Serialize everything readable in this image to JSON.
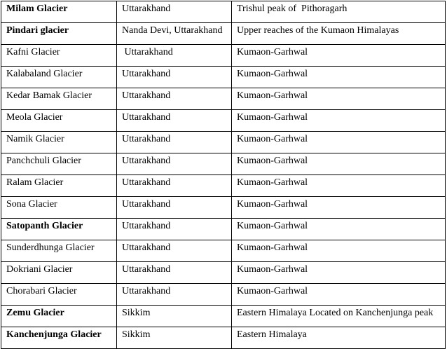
{
  "table": {
    "rows": [
      {
        "cells": [
          "Milam Glacier",
          "Uttarakhand",
          "Trishul peak of  Pithoragarh"
        ],
        "bold": true
      },
      {
        "cells": [
          "Pindari glacier",
          "Nanda Devi, Uttarakhand",
          "Upper reaches of the Kumaon Himalayas"
        ],
        "bold": true
      },
      {
        "cells": [
          "Kafni Glacier",
          " Uttarakhand",
          "Kumaon-Garhwal"
        ],
        "bold": false
      },
      {
        "cells": [
          "Kalabaland Glacier",
          "Uttarakhand",
          "Kumaon-Garhwal"
        ],
        "bold": false
      },
      {
        "cells": [
          "Kedar Bamak Glacier",
          "Uttarakhand",
          "Kumaon-Garhwal"
        ],
        "bold": false
      },
      {
        "cells": [
          "Meola Glacier",
          "Uttarakhand",
          "Kumaon-Garhwal"
        ],
        "bold": false
      },
      {
        "cells": [
          "Namik Glacier",
          "Uttarakhand",
          "Kumaon-Garhwal"
        ],
        "bold": false
      },
      {
        "cells": [
          "Panchchuli Glacier",
          "Uttarakhand",
          "Kumaon-Garhwal"
        ],
        "bold": false
      },
      {
        "cells": [
          "Ralam Glacier",
          "Uttarakhand",
          "Kumaon-Garhwal"
        ],
        "bold": false
      },
      {
        "cells": [
          "Sona Glacier",
          "Uttarakhand",
          "Kumaon-Garhwal"
        ],
        "bold": false
      },
      {
        "cells": [
          "Satopanth Glacier",
          "Uttarakhand",
          "Kumaon-Garhwal"
        ],
        "bold": true
      },
      {
        "cells": [
          "Sunderdhunga Glacier",
          "Uttarakhand",
          "Kumaon-Garhwal"
        ],
        "bold": false
      },
      {
        "cells": [
          "Dokriani Glacier",
          "Uttarakhand",
          "Kumaon-Garhwal"
        ],
        "bold": false
      },
      {
        "cells": [
          "Chorabari Glacier",
          "Uttarakhand",
          "Kumaon-Garhwal"
        ],
        "bold": false
      },
      {
        "cells": [
          "Zemu Glacier",
          "Sikkim",
          "Eastern Himalaya Located on Kanchenjunga peak"
        ],
        "bold": true
      },
      {
        "cells": [
          "Kanchenjunga Glacier",
          "Sikkim",
          "Eastern Himalaya"
        ],
        "bold": true
      }
    ]
  }
}
